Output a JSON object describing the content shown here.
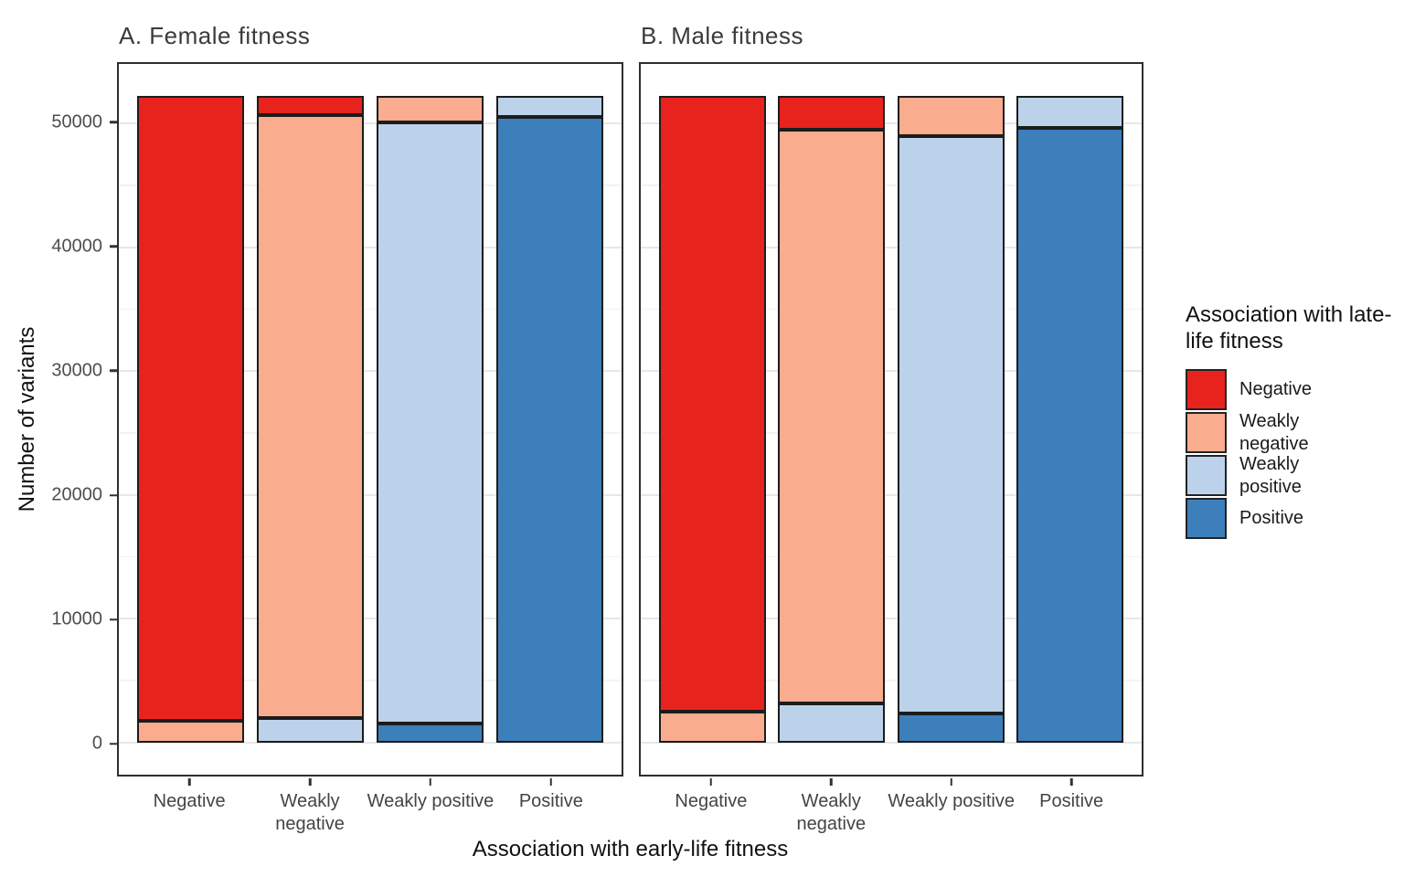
{
  "chart_data": {
    "type": "bar",
    "subtype": "stacked",
    "xlabel": "Association with early-life fitness",
    "ylabel": "Number of variants",
    "categories": [
      "Negative",
      "Weakly negative",
      "Weakly positive",
      "Positive"
    ],
    "yticks": [
      0,
      10000,
      20000,
      30000,
      40000,
      50000
    ],
    "minor_gridlines": [
      5000,
      15000,
      25000,
      35000,
      45000
    ],
    "ylim": [
      -2610,
      54810
    ],
    "bar_total": 52250,
    "grid": "on",
    "legend_position": "right",
    "colors": {
      "Negative": "#e8231e",
      "Weakly negative": "#f9ac8e",
      "Weakly positive": "#bcd2eb",
      "Positive": "#3c7fbb"
    },
    "panels": [
      {
        "label": "A. Female fitness",
        "bars": [
          {
            "category": "Negative",
            "segments": [
              {
                "fill": "Weakly negative",
                "value": 1750
              },
              {
                "fill": "Negative",
                "value": 50500
              }
            ]
          },
          {
            "category": "Weakly negative",
            "segments": [
              {
                "fill": "Weakly positive",
                "value": 2000
              },
              {
                "fill": "Weakly negative",
                "value": 48650
              },
              {
                "fill": "Negative",
                "value": 1600
              }
            ]
          },
          {
            "category": "Weakly positive",
            "segments": [
              {
                "fill": "Positive",
                "value": 1500
              },
              {
                "fill": "Weakly positive",
                "value": 48600
              },
              {
                "fill": "Weakly negative",
                "value": 2150
              }
            ]
          },
          {
            "category": "Positive",
            "segments": [
              {
                "fill": "Positive",
                "value": 50530
              },
              {
                "fill": "Weakly positive",
                "value": 1720
              }
            ]
          }
        ]
      },
      {
        "label": "B. Male fitness",
        "bars": [
          {
            "category": "Negative",
            "segments": [
              {
                "fill": "Weakly negative",
                "value": 2500
              },
              {
                "fill": "Negative",
                "value": 49750
              }
            ]
          },
          {
            "category": "Weakly negative",
            "segments": [
              {
                "fill": "Weakly positive",
                "value": 3130
              },
              {
                "fill": "Weakly negative",
                "value": 46400
              },
              {
                "fill": "Negative",
                "value": 2720
              }
            ]
          },
          {
            "category": "Weakly positive",
            "segments": [
              {
                "fill": "Positive",
                "value": 2370
              },
              {
                "fill": "Weakly positive",
                "value": 46630
              },
              {
                "fill": "Weakly negative",
                "value": 3250
              }
            ]
          },
          {
            "category": "Positive",
            "segments": [
              {
                "fill": "Positive",
                "value": 49630
              },
              {
                "fill": "Weakly positive",
                "value": 2620
              }
            ]
          }
        ]
      }
    ],
    "legend": {
      "title": "Association with late-life fitness",
      "entries": [
        {
          "label": "Negative",
          "color": "#e8231e"
        },
        {
          "label": "Weakly negative",
          "color": "#f9ac8e"
        },
        {
          "label": "Weakly positive",
          "color": "#bcd2eb"
        },
        {
          "label": "Positive",
          "color": "#3c7fbb"
        }
      ]
    }
  }
}
